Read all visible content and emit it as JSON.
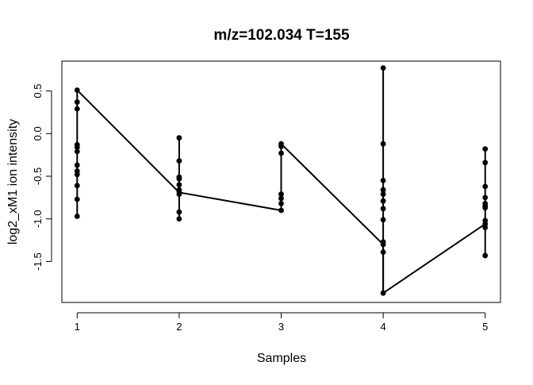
{
  "chart_data": {
    "type": "scatter",
    "title": "m/z=102.034 T=155",
    "xlabel": "Samples",
    "ylabel": "log2_xM1 ion intensity",
    "xlim": [
      0.85,
      5.15
    ],
    "ylim": [
      -1.98,
      0.85
    ],
    "x_ticks": [
      1,
      2,
      3,
      4,
      5
    ],
    "x_tick_labels": [
      "1",
      "2",
      "3",
      "4",
      "5"
    ],
    "y_ticks": [
      -1.5,
      -1.0,
      -0.5,
      0.0,
      0.5
    ],
    "y_tick_labels": [
      "-1.5",
      "-1.0",
      "-0.5",
      "0.0",
      "0.5"
    ],
    "grid": false,
    "legend": "none",
    "color": "#000000",
    "groups": [
      {
        "x": 1,
        "values": [
          0.51,
          0.37,
          0.29,
          -0.13,
          -0.16,
          -0.21,
          -0.37,
          -0.44,
          -0.48,
          -0.61,
          -0.77,
          -0.97
        ]
      },
      {
        "x": 2,
        "values": [
          -0.05,
          -0.32,
          -0.51,
          -0.53,
          -0.6,
          -0.66,
          -0.68,
          -0.71,
          -0.92,
          -1.0
        ]
      },
      {
        "x": 3,
        "values": [
          -0.12,
          -0.15,
          -0.23,
          -0.71,
          -0.76,
          -0.82,
          -0.9
        ]
      },
      {
        "x": 4,
        "values": [
          0.77,
          -0.12,
          -0.55,
          -0.66,
          -0.71,
          -0.79,
          -0.88,
          -1.01,
          -1.27,
          -1.3,
          -1.39,
          -1.87
        ]
      },
      {
        "x": 5,
        "values": [
          -0.18,
          -0.34,
          -0.62,
          -0.75,
          -0.82,
          -0.85,
          -0.87,
          -1.02,
          -1.06,
          -1.1,
          -1.43
        ]
      }
    ],
    "connector_line": [
      {
        "x": 1,
        "y": 0.51
      },
      {
        "x": 2,
        "y": -0.69
      },
      {
        "x": 3,
        "y": -0.9
      },
      {
        "x": 3,
        "y": -0.12
      },
      {
        "x": 4,
        "y": -1.3
      },
      {
        "x": 4,
        "y": -1.87
      },
      {
        "x": 5,
        "y": -1.06
      }
    ]
  }
}
